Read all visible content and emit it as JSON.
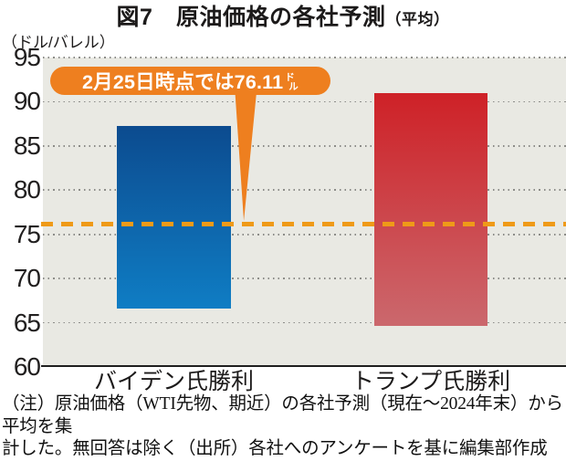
{
  "title": {
    "main": "図7　原油価格の各社予測",
    "suffix": "（平均）"
  },
  "y_axis": {
    "unit": "（ドル/バレル）",
    "min": 60,
    "max": 95,
    "step": 5,
    "ticks": [
      95,
      90,
      85,
      80,
      75,
      70,
      65,
      60
    ]
  },
  "callout": {
    "prefix": "2月25日時点では76.11",
    "unit_top": "ド",
    "unit_bottom": "ル"
  },
  "chart_data": {
    "type": "bar",
    "subtype": "floating_range_columns",
    "title": "図7 原油価格の各社予測（平均）",
    "ylabel": "ドル/バレル",
    "ylim": [
      60,
      95
    ],
    "grid": "horizontal-dotted",
    "legend": "none",
    "categories": [
      "バイデン氏勝利",
      "トランプ氏勝利"
    ],
    "series": [
      {
        "name": "バイデン氏勝利",
        "low": 66.6,
        "high": 87.3,
        "color_top": "#0c4b8f",
        "color_bottom": "#0f7dc4"
      },
      {
        "name": "トランプ氏勝利",
        "low": 64.6,
        "high": 91.0,
        "color_top": "#ce2127",
        "color_bottom": "#cb686d"
      }
    ],
    "reference_line": {
      "value": 76.11,
      "label": "2月25日時点では76.11ドル",
      "style": "dashed",
      "color": "#ef9a18"
    }
  },
  "note": {
    "line1": "（注）原油価格（WTI先物、期近）の各社予測（現在～2024年末）から平均を集",
    "line2": "計した。無回答は除く（出所）各社へのアンケートを基に編集部作成"
  },
  "colors": {
    "callout_bg": "#ee7f1f",
    "dashed_line": "#ef9a18",
    "plot_bg": "#e9e9e3",
    "grid_dot": "#8c8c88",
    "axis": "#1f1f1f"
  }
}
